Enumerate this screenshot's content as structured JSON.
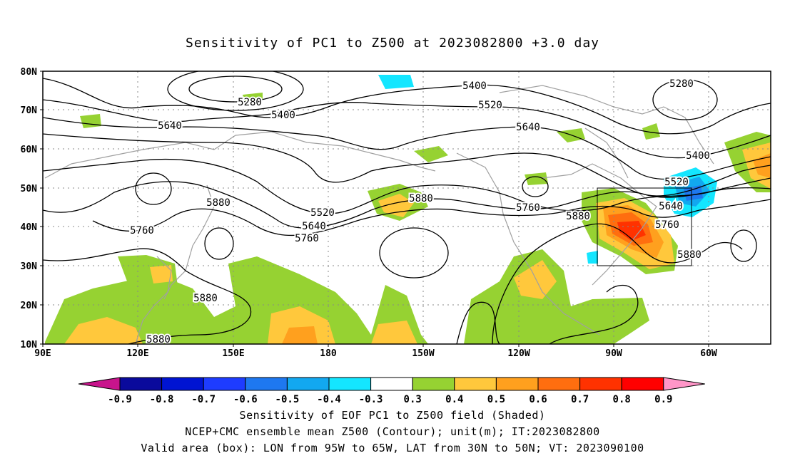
{
  "title": "Sensitivity of PC1 to Z500 at 2023082800 +3.0 day",
  "axes": {
    "lat_labels": [
      "80N",
      "70N",
      "60N",
      "50N",
      "40N",
      "30N",
      "20N",
      "10N"
    ],
    "lon_labels": [
      "90E",
      "120E",
      "150E",
      "180",
      "150W",
      "120W",
      "90W",
      "60W"
    ]
  },
  "contour_labels": [
    {
      "text": "5400",
      "lon_index": 0
    },
    {
      "text": "5280"
    },
    {
      "text": "5400"
    },
    {
      "text": "5640"
    },
    {
      "text": "5520"
    },
    {
      "text": "5640"
    },
    {
      "text": "5280"
    },
    {
      "text": "5400"
    },
    {
      "text": "5520"
    },
    {
      "text": "5880"
    },
    {
      "text": "5760"
    },
    {
      "text": "5880"
    },
    {
      "text": "5520"
    },
    {
      "text": "5640"
    },
    {
      "text": "5760"
    },
    {
      "text": "5760"
    },
    {
      "text": "5880"
    },
    {
      "text": "5640"
    },
    {
      "text": "5760"
    },
    {
      "text": "5880"
    },
    {
      "text": "5880"
    },
    {
      "text": "5880"
    }
  ],
  "colorbar": {
    "labels": [
      "-0.9",
      "-0.8",
      "-0.7",
      "-0.6",
      "-0.5",
      "-0.4",
      "-0.3",
      "0.3",
      "0.4",
      "0.5",
      "0.6",
      "0.7",
      "0.8",
      "0.9"
    ],
    "colors": [
      "#0a0a9c",
      "#0014d2",
      "#1e3cff",
      "#1e78f0",
      "#12a8f0",
      "#14e6ff",
      "#ffffff",
      "#96d232",
      "#ffc83c",
      "#ffa01e",
      "#ff6e0f",
      "#ff3200",
      "#ff0000"
    ],
    "low_color": "#c8148c",
    "high_color": "#ff96c8"
  },
  "captions": {
    "line1": "Sensitivity of EOF PC1 to Z500 field (Shaded)",
    "line2": "NCEP+CMC ensemble mean Z500 (Contour); unit(m); IT:2023082800",
    "line3": "Valid area (box): LON from 95W to 65W, LAT from 30N to 50N; VT: 2023090100"
  },
  "valid_box": {
    "lon_west": "95W",
    "lon_east": "65W",
    "lat_south": "30N",
    "lat_north": "50N"
  }
}
